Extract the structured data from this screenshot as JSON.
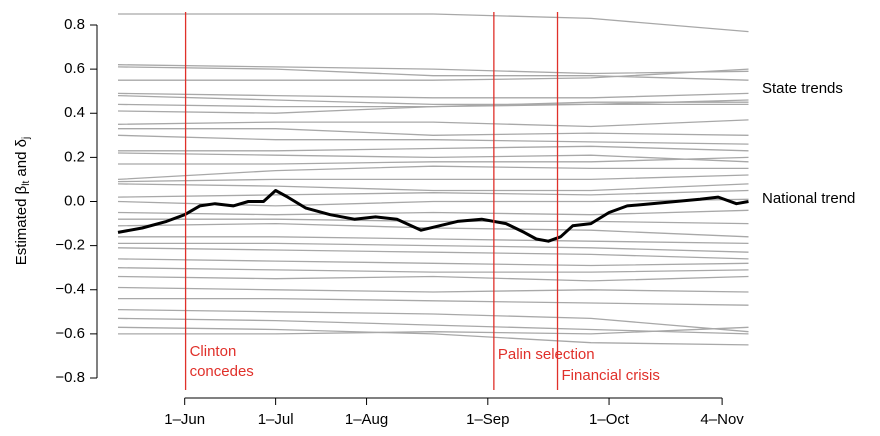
{
  "chart_data": {
    "type": "line",
    "ylabel": [
      {
        "text": "Estimated β"
      },
      {
        "text": "lt",
        "sub": true
      },
      {
        "text": " and δ"
      },
      {
        "text": "j",
        "sub": true
      }
    ],
    "xlim": [
      0,
      208.5
    ],
    "ylim": [
      -0.8,
      0.8
    ],
    "xticks": [
      {
        "value": 22,
        "label": "1–Jun"
      },
      {
        "value": 52,
        "label": "1–Jul"
      },
      {
        "value": 82,
        "label": "1–Aug"
      },
      {
        "value": 122,
        "label": "1–Sep"
      },
      {
        "value": 162,
        "label": "1–Oct"
      },
      {
        "value": 199.3,
        "label": "4–Nov"
      }
    ],
    "yticks": [
      {
        "value": -0.8,
        "label": "−0.8"
      },
      {
        "value": -0.6,
        "label": "−0.6"
      },
      {
        "value": -0.4,
        "label": "−0.4"
      },
      {
        "value": -0.2,
        "label": "−0.2"
      },
      {
        "value": 0,
        "label": "0.0"
      },
      {
        "value": 0.2,
        "label": "0.2"
      },
      {
        "value": 0.4,
        "label": "0.4"
      },
      {
        "value": 0.6,
        "label": "0.6"
      },
      {
        "value": 0.8,
        "label": "0.8"
      }
    ],
    "annotations": [
      {
        "text": "State trends"
      },
      {
        "text": "National trend"
      }
    ],
    "events": [
      {
        "x": 22.3,
        "label": [
          "Clinton",
          "concedes"
        ]
      },
      {
        "x": 124,
        "label": [
          "Palin selection"
        ]
      },
      {
        "x": 145,
        "label": [
          "Financial crisis"
        ]
      }
    ],
    "event_color": "#e0302a",
    "national": {
      "color": "#000000",
      "x": [
        0,
        8,
        16,
        22,
        27,
        32,
        38,
        43,
        48,
        52,
        56,
        62,
        70,
        78,
        85,
        92,
        100,
        106,
        112,
        120,
        128,
        134,
        138,
        142,
        146,
        150,
        156,
        162,
        168,
        176,
        184,
        192,
        198,
        204,
        208
      ],
      "values": [
        -0.14,
        -0.12,
        -0.09,
        -0.06,
        -0.02,
        -0.01,
        -0.02,
        0.0,
        0.0,
        0.05,
        0.02,
        -0.03,
        -0.06,
        -0.08,
        -0.07,
        -0.08,
        -0.13,
        -0.11,
        -0.09,
        -0.08,
        -0.1,
        -0.14,
        -0.17,
        -0.18,
        -0.16,
        -0.11,
        -0.1,
        -0.05,
        -0.02,
        -0.01,
        0.0,
        0.01,
        0.02,
        -0.01,
        0.0
      ]
    },
    "state_color": "#a8a8a8",
    "state_x": [
      0,
      52,
      104,
      156,
      208
    ],
    "states": [
      [
        0.85,
        0.85,
        0.85,
        0.83,
        0.77
      ],
      [
        0.62,
        0.61,
        0.6,
        0.58,
        0.59
      ],
      [
        0.61,
        0.6,
        0.57,
        0.57,
        0.55
      ],
      [
        0.55,
        0.55,
        0.55,
        0.56,
        0.6
      ],
      [
        0.49,
        0.48,
        0.47,
        0.47,
        0.49
      ],
      [
        0.48,
        0.46,
        0.44,
        0.44,
        0.46
      ],
      [
        0.44,
        0.43,
        0.43,
        0.44,
        0.44
      ],
      [
        0.41,
        0.4,
        0.43,
        0.45,
        0.45
      ],
      [
        0.35,
        0.36,
        0.36,
        0.34,
        0.37
      ],
      [
        0.33,
        0.33,
        0.3,
        0.31,
        0.3
      ],
      [
        0.3,
        0.28,
        0.28,
        0.27,
        0.26
      ],
      [
        0.23,
        0.23,
        0.24,
        0.25,
        0.23
      ],
      [
        0.22,
        0.21,
        0.2,
        0.21,
        0.18
      ],
      [
        0.17,
        0.17,
        0.18,
        0.18,
        0.2
      ],
      [
        0.1,
        0.14,
        0.16,
        0.15,
        0.15
      ],
      [
        0.09,
        0.1,
        0.1,
        0.1,
        0.12
      ],
      [
        0.08,
        0.07,
        0.05,
        0.05,
        0.08
      ],
      [
        0.02,
        0.03,
        0.04,
        0.03,
        0.05
      ],
      [
        0.0,
        -0.02,
        0.0,
        0.0,
        0.01
      ],
      [
        -0.05,
        -0.06,
        -0.05,
        -0.06,
        -0.04
      ],
      [
        -0.08,
        -0.08,
        -0.09,
        -0.09,
        -0.1
      ],
      [
        -0.11,
        -0.1,
        -0.12,
        -0.13,
        -0.16
      ],
      [
        -0.16,
        -0.16,
        -0.17,
        -0.18,
        -0.19
      ],
      [
        -0.19,
        -0.19,
        -0.2,
        -0.21,
        -0.23
      ],
      [
        -0.21,
        -0.22,
        -0.23,
        -0.24,
        -0.26
      ],
      [
        -0.26,
        -0.27,
        -0.28,
        -0.29,
        -0.28
      ],
      [
        -0.3,
        -0.31,
        -0.32,
        -0.32,
        -0.31
      ],
      [
        -0.34,
        -0.35,
        -0.34,
        -0.36,
        -0.34
      ],
      [
        -0.39,
        -0.4,
        -0.41,
        -0.4,
        -0.41
      ],
      [
        -0.44,
        -0.44,
        -0.45,
        -0.46,
        -0.47
      ],
      [
        -0.49,
        -0.5,
        -0.51,
        -0.53,
        -0.59
      ],
      [
        -0.53,
        -0.54,
        -0.56,
        -0.58,
        -0.6
      ],
      [
        -0.57,
        -0.58,
        -0.6,
        -0.64,
        -0.65
      ],
      [
        -0.6,
        -0.6,
        -0.59,
        -0.6,
        -0.57
      ]
    ]
  }
}
